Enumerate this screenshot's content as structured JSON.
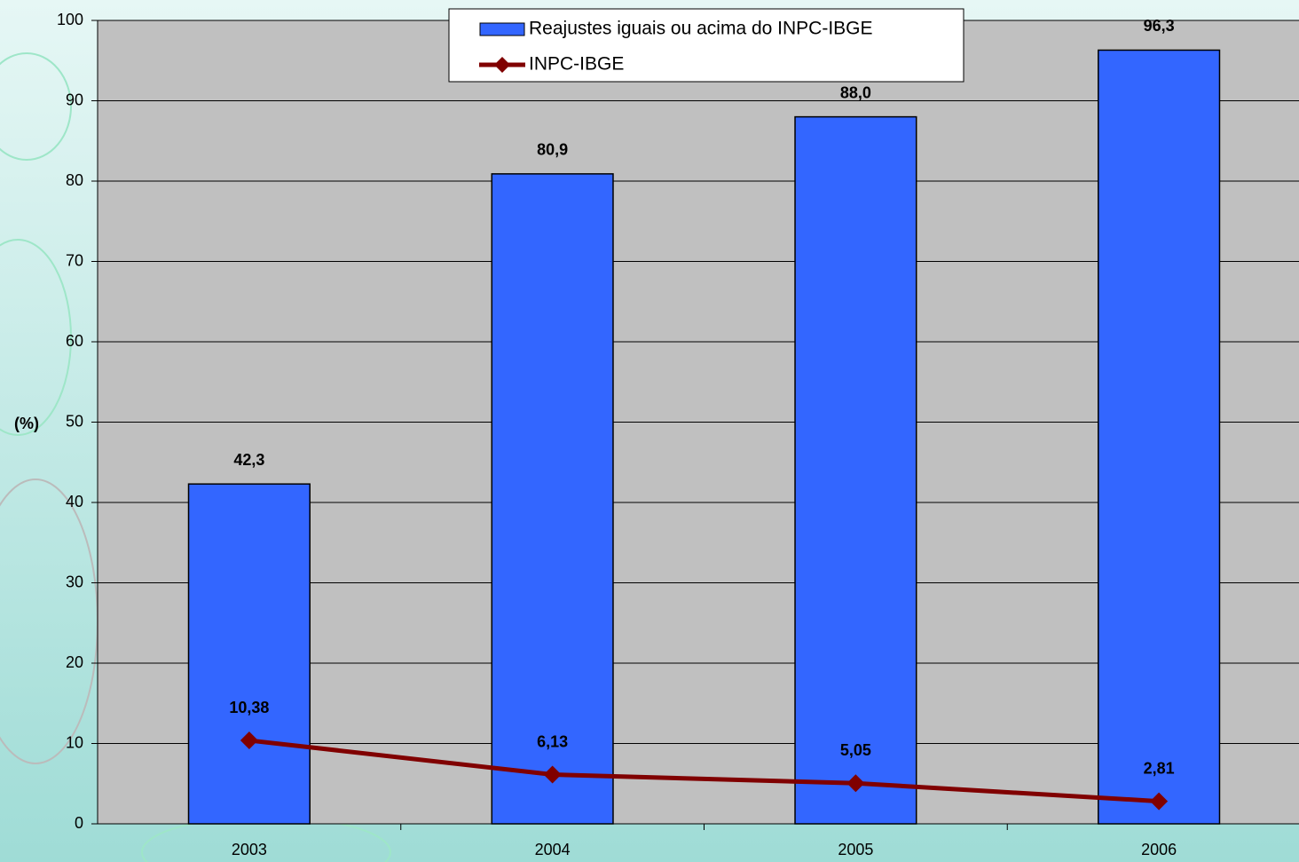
{
  "chart_data": {
    "type": "bar",
    "y_label": "(%)",
    "categories": [
      "2003",
      "2004",
      "2005",
      "2006"
    ],
    "series": [
      {
        "name": "Reajustes iguais ou acima do INPC-IBGE",
        "type": "bar",
        "color": "#3366ff",
        "values": [
          42.3,
          80.9,
          88.0,
          96.3
        ],
        "value_labels": [
          "42,3",
          "80,9",
          "88,0",
          "96,3"
        ]
      },
      {
        "name": "INPC-IBGE",
        "type": "line",
        "color": "#800000",
        "values": [
          10.38,
          6.13,
          5.05,
          2.81
        ],
        "value_labels": [
          "10,38",
          "6,13",
          "5,05",
          "2,81"
        ]
      }
    ],
    "ylim": [
      0,
      100
    ],
    "yticks": [
      0,
      10,
      20,
      30,
      40,
      50,
      60,
      70,
      80,
      90,
      100
    ],
    "grid": true,
    "legend": "top"
  }
}
